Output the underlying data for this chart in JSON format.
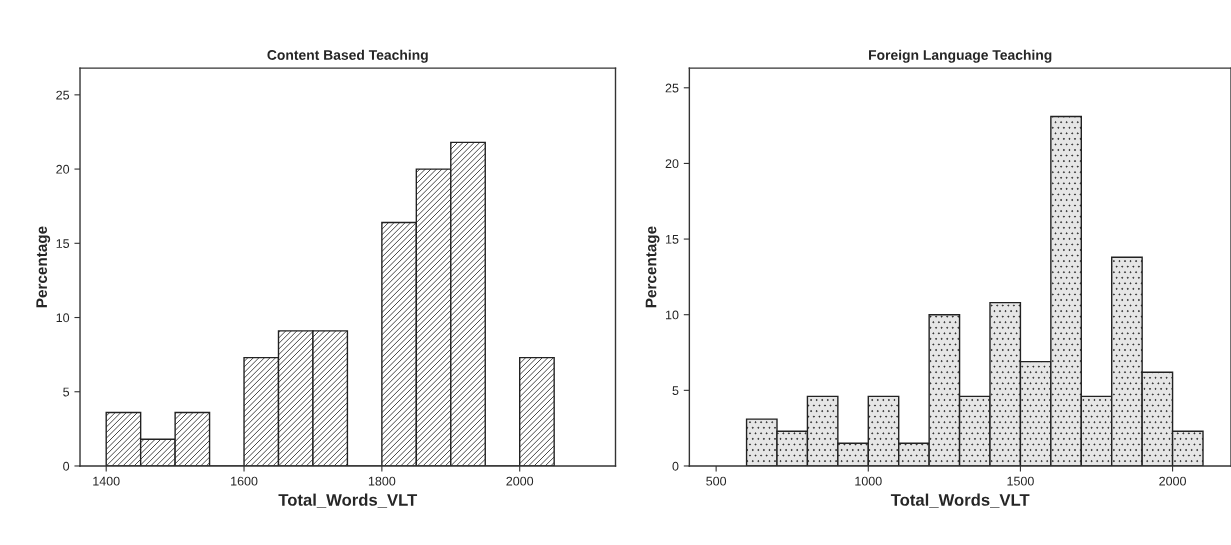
{
  "chart_data": [
    {
      "type": "histogram",
      "title": "Content Based Teaching",
      "xlabel": "Total_Words_VLT",
      "ylabel": "Percentage",
      "color": "#222222",
      "bins": [
        1400,
        1450,
        1500,
        1550,
        1600,
        1650,
        1700,
        1750,
        1800,
        1850,
        1900,
        1950,
        2000,
        2050
      ],
      "values": [
        3.6,
        1.8,
        3.6,
        0,
        7.3,
        9.1,
        9.1,
        0,
        16.4,
        20,
        21.8,
        0,
        7.3
      ],
      "xlim": [
        1362,
        2139
      ],
      "ylim": [
        0,
        26.8
      ],
      "xticks": [
        1400,
        1600,
        1800,
        2000
      ],
      "yticks": [
        0,
        5,
        10,
        15,
        20,
        25
      ],
      "grid": false,
      "legend": false
    },
    {
      "type": "histogram",
      "title": "Foreign Language Teaching",
      "xlabel": "Total_Words_VLT",
      "ylabel": "Percentage",
      "color": "#222222",
      "bins": [
        600,
        700,
        800,
        900,
        1000,
        1100,
        1200,
        1300,
        1400,
        1500,
        1600,
        1700,
        1800,
        1900,
        2000,
        2100
      ],
      "values": [
        3.1,
        2.3,
        4.6,
        1.5,
        4.6,
        1.5,
        10,
        4.6,
        10.8,
        6.9,
        23.1,
        4.6,
        13.8,
        6.2,
        2.3
      ],
      "xlim": [
        412,
        2192
      ],
      "ylim": [
        0,
        26.3
      ],
      "xticks": [
        500,
        1000,
        1500,
        2000
      ],
      "yticks": [
        0,
        5,
        10,
        15,
        20,
        25
      ],
      "grid": false,
      "legend": false
    }
  ]
}
